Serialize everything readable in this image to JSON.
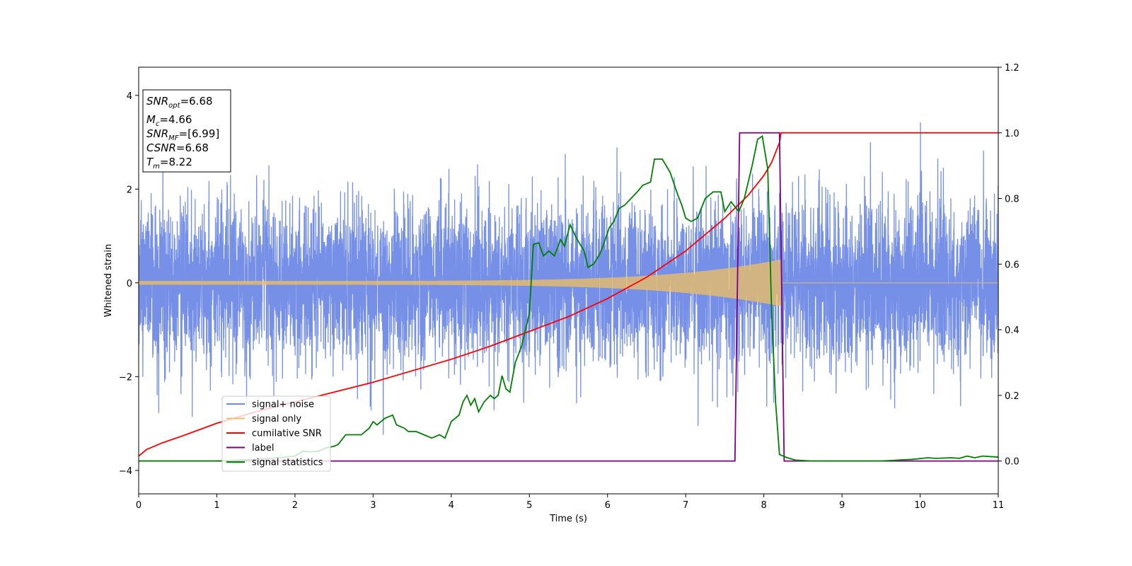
{
  "chart_data": {
    "type": "line",
    "xlabel": "Time (s)",
    "ylabel_left": "Whitened strain",
    "ylabel_right": "",
    "xlim": [
      0,
      11
    ],
    "ylim_left": [
      -4.5,
      4.6
    ],
    "ylim_right": [
      -0.1,
      1.2
    ],
    "xticks": [
      0,
      1,
      2,
      3,
      4,
      5,
      6,
      7,
      8,
      9,
      10,
      11
    ],
    "yticks_left": [
      -4,
      -2,
      0,
      2,
      4
    ],
    "yticks_right": [
      0.0,
      0.2,
      0.4,
      0.6,
      0.8,
      1.0,
      1.2
    ],
    "grid": false,
    "legend_position": "lower-left",
    "info_box": [
      {
        "name": "SNR",
        "sub": "opt",
        "value": "=6.68"
      },
      {
        "name": "M",
        "sub": "c",
        "value": "=4.66"
      },
      {
        "name": "SNR",
        "sub": "MF",
        "value": "=[6.99]"
      },
      {
        "name": "CSNR",
        "sub": "",
        "value": "=6.68"
      },
      {
        "name": "T",
        "sub": "m",
        "value": "=8.22"
      }
    ],
    "series": [
      {
        "name": "signal+ noise",
        "axis": "left",
        "color": "#6f8ae6",
        "kind": "gaussian_noise",
        "std": 0.85,
        "x_range": [
          0,
          11
        ]
      },
      {
        "name": "signal only",
        "axis": "left",
        "color": "#f0c060",
        "kind": "chirp",
        "amplitude_start": 0.04,
        "amplitude_end": 0.5,
        "t_merge": 8.22,
        "x_range": [
          0,
          11
        ]
      },
      {
        "name": "cumilative SNR",
        "axis": "right",
        "color": "#ff0000",
        "x": [
          0,
          0.1,
          0.3,
          0.6,
          1,
          1.5,
          2,
          2.5,
          3,
          3.5,
          4,
          4.5,
          5,
          5.5,
          6,
          6.5,
          7,
          7.5,
          7.8,
          8.0,
          8.1,
          8.15,
          8.2,
          8.22,
          11
        ],
        "y": [
          0.015,
          0.035,
          0.055,
          0.08,
          0.115,
          0.15,
          0.18,
          0.21,
          0.24,
          0.275,
          0.31,
          0.35,
          0.395,
          0.44,
          0.495,
          0.56,
          0.64,
          0.74,
          0.81,
          0.87,
          0.91,
          0.94,
          0.97,
          1.0,
          1.0
        ]
      },
      {
        "name": "label",
        "axis": "right",
        "color": "#800080",
        "x": [
          0,
          7.63,
          7.69,
          8.2,
          8.26,
          11
        ],
        "y": [
          0,
          0,
          1,
          1,
          0,
          0
        ]
      },
      {
        "name": "signal statistics",
        "axis": "right",
        "color": "#008000",
        "x": [
          0,
          0.5,
          1,
          1.5,
          1.8,
          2.0,
          2.1,
          2.2,
          2.3,
          2.4,
          2.5,
          2.55,
          2.65,
          2.75,
          2.85,
          2.95,
          3.0,
          3.05,
          3.15,
          3.25,
          3.3,
          3.4,
          3.45,
          3.55,
          3.65,
          3.75,
          3.85,
          3.92,
          4.0,
          4.1,
          4.15,
          4.2,
          4.25,
          4.3,
          4.35,
          4.42,
          4.5,
          4.55,
          4.6,
          4.65,
          4.7,
          4.75,
          4.82,
          4.9,
          5.0,
          5.05,
          5.12,
          5.18,
          5.25,
          5.32,
          5.4,
          5.45,
          5.52,
          5.6,
          5.7,
          5.75,
          5.82,
          5.9,
          5.95,
          6.02,
          6.08,
          6.15,
          6.22,
          6.3,
          6.38,
          6.45,
          6.55,
          6.6,
          6.7,
          6.8,
          6.9,
          6.95,
          7.0,
          7.07,
          7.15,
          7.25,
          7.35,
          7.45,
          7.5,
          7.58,
          7.68,
          7.75,
          7.8,
          7.85,
          7.92,
          7.98,
          8.05,
          8.1,
          8.15,
          8.2,
          8.3,
          8.4,
          8.6,
          9,
          9.5,
          9.9,
          10.1,
          10.2,
          10.4,
          10.5,
          10.6,
          10.7,
          10.8,
          11
        ],
        "y": [
          0,
          0,
          0,
          0.005,
          0.01,
          0.015,
          0.03,
          0.028,
          0.03,
          0.04,
          0.045,
          0.05,
          0.08,
          0.08,
          0.08,
          0.1,
          0.12,
          0.11,
          0.13,
          0.14,
          0.11,
          0.1,
          0.09,
          0.09,
          0.08,
          0.07,
          0.08,
          0.07,
          0.12,
          0.14,
          0.18,
          0.2,
          0.17,
          0.19,
          0.15,
          0.18,
          0.2,
          0.19,
          0.2,
          0.26,
          0.22,
          0.21,
          0.3,
          0.35,
          0.45,
          0.66,
          0.665,
          0.625,
          0.64,
          0.625,
          0.675,
          0.655,
          0.72,
          0.68,
          0.64,
          0.59,
          0.6,
          0.63,
          0.66,
          0.71,
          0.73,
          0.77,
          0.78,
          0.8,
          0.82,
          0.84,
          0.85,
          0.92,
          0.92,
          0.88,
          0.81,
          0.78,
          0.74,
          0.73,
          0.74,
          0.8,
          0.82,
          0.82,
          0.76,
          0.79,
          0.76,
          0.8,
          0.85,
          0.9,
          0.98,
          0.99,
          0.89,
          0.45,
          0.18,
          0.02,
          0.01,
          0.003,
          0,
          0,
          0,
          0.005,
          0.01,
          0.008,
          0.01,
          0.008,
          0.015,
          0.01,
          0.015,
          0.012
        ]
      }
    ]
  }
}
